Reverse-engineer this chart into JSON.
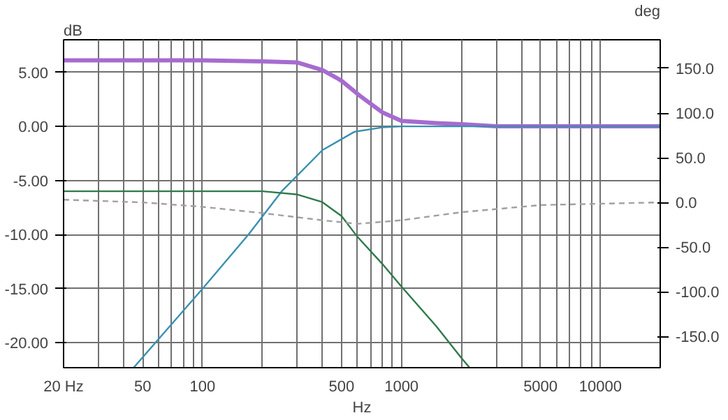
{
  "chart_data": {
    "type": "line",
    "xlabel": "Hz",
    "ylabel": "dB",
    "y2label": "deg",
    "log": "x",
    "grid": true,
    "marker": "none",
    "line_style": "solid",
    "xlim": [
      20,
      20000
    ],
    "xticks": [
      {
        "value": 20,
        "label": "20 Hz"
      },
      {
        "value": 30,
        "label": null
      },
      {
        "value": 40,
        "label": null
      },
      50,
      {
        "value": 60,
        "label": null
      },
      {
        "value": 70,
        "label": null
      },
      {
        "value": 80,
        "label": null
      },
      {
        "value": 90,
        "label": null
      },
      100,
      {
        "value": 200,
        "label": null
      },
      {
        "value": 300,
        "label": null
      },
      {
        "value": 400,
        "label": null
      },
      500,
      {
        "value": 600,
        "label": null
      },
      {
        "value": 700,
        "label": null
      },
      {
        "value": 800,
        "label": null
      },
      {
        "value": 900,
        "label": null
      },
      1000,
      {
        "value": 2000,
        "label": null
      },
      {
        "value": 3000,
        "label": null
      },
      {
        "value": 4000,
        "label": null
      },
      5000,
      {
        "value": 6000,
        "label": null
      },
      {
        "value": 7000,
        "label": null
      },
      {
        "value": 8000,
        "label": null
      },
      {
        "value": 9000,
        "label": null
      },
      10000
    ],
    "ylim": [
      -22.3,
      8
    ],
    "yticks": [
      {
        "value": -20,
        "label": "-20.00"
      },
      {
        "value": -15,
        "label": "-15.00"
      },
      {
        "value": -10,
        "label": "-10.00"
      },
      {
        "value": -5,
        "label": "-5.00"
      },
      {
        "value": 0,
        "label": "0.00"
      },
      {
        "value": 5,
        "label": "5.00"
      }
    ],
    "y2lim": [
      -185,
      182
    ],
    "y2ticks": [
      {
        "value": -150,
        "label": "-150.0"
      },
      {
        "value": -100,
        "label": "-100.0"
      },
      {
        "value": -50,
        "label": "-50.0"
      },
      {
        "value": 0,
        "label": "0.0"
      },
      {
        "value": 50,
        "label": "50.0"
      },
      {
        "value": 100,
        "label": "100.0"
      },
      {
        "value": 150,
        "label": "150.0"
      }
    ],
    "series": [
      {
        "color": "#a66bd0",
        "x": [
          20,
          100,
          200,
          300,
          400,
          470,
          500,
          620,
          800,
          1000,
          1500,
          2000,
          3000,
          20000
        ],
        "values": [
          6.1,
          6.1,
          6.0,
          5.9,
          5.2,
          4.5,
          4.2,
          2.8,
          1.3,
          0.5,
          0.3,
          0.2,
          0.0,
          0.0
        ]
      },
      {
        "color": "#3a8fb0",
        "x": [
          45,
          100,
          170,
          250,
          400,
          580,
          800,
          1000,
          20000
        ],
        "values": [
          -22.3,
          -15,
          -10,
          -6,
          -2.2,
          -0.5,
          -0.1,
          0,
          0
        ]
      },
      {
        "color": "#2e7a4a",
        "x": [
          20,
          200,
          300,
          400,
          500,
          600,
          800,
          1000,
          1500,
          2000,
          2200
        ],
        "values": [
          -6,
          -6,
          -6.3,
          -7,
          -8.3,
          -10.2,
          -12.7,
          -14.8,
          -18.5,
          -21.4,
          -22.3
        ]
      },
      {
        "color": "#a0a0a0",
        "axis": "y2",
        "line_style": "dashed",
        "x": [
          20,
          50,
          100,
          200,
          400,
          600,
          1000,
          2000,
          5000,
          20000
        ],
        "values": [
          3,
          0,
          -5,
          -12,
          -20,
          -24,
          -20,
          -11,
          -3,
          0
        ]
      }
    ]
  }
}
